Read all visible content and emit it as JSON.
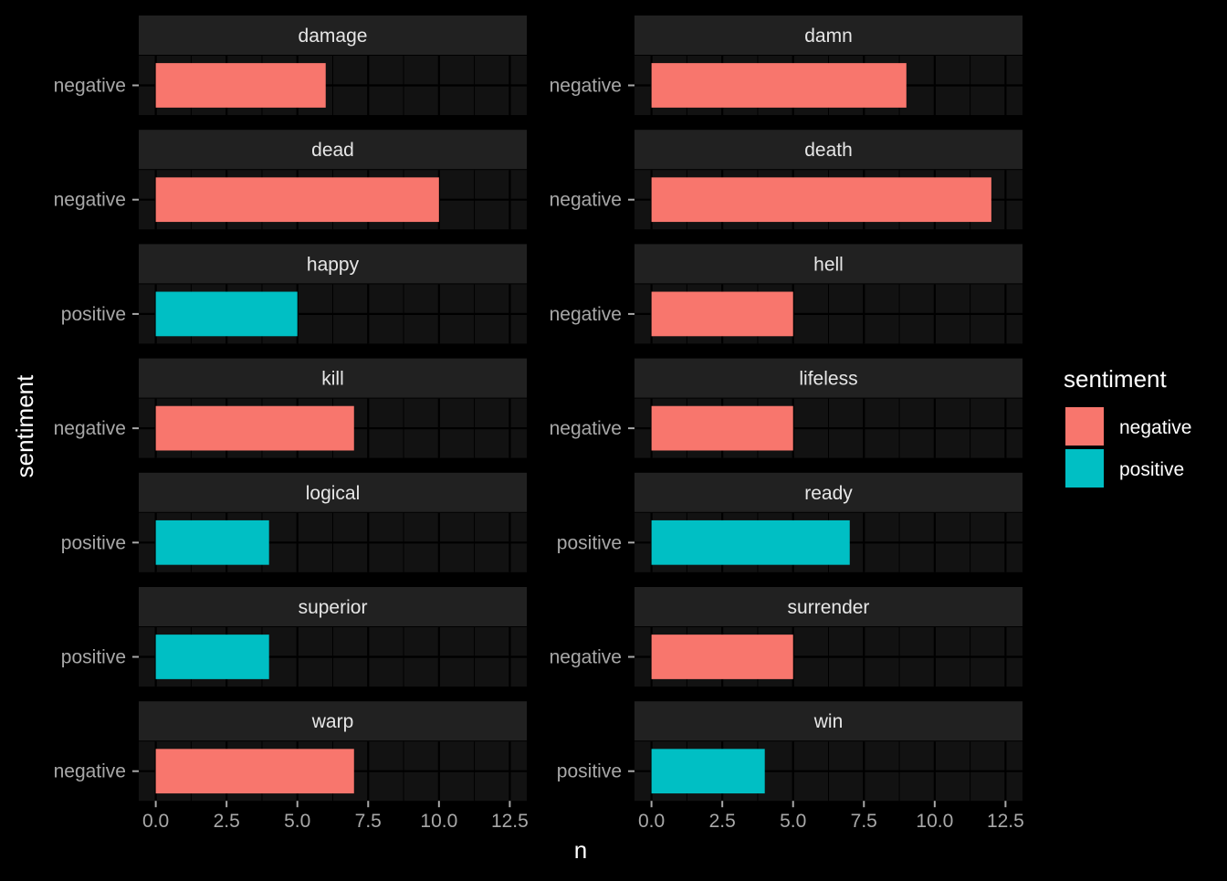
{
  "chart_data": {
    "type": "bar",
    "orientation": "horizontal",
    "facet_layout": "2 columns x 7 rows",
    "xlabel": "n",
    "ylabel": "sentiment",
    "xlim": [
      0,
      12.5
    ],
    "x_ticks": [
      "0.0",
      "2.5",
      "5.0",
      "7.5",
      "10.0",
      "12.5"
    ],
    "grid": true,
    "theme": "dark",
    "legend": {
      "title": "sentiment",
      "position": "right",
      "entries": [
        {
          "label": "negative",
          "color": "#F8766D"
        },
        {
          "label": "positive",
          "color": "#00BFC4"
        }
      ]
    },
    "facets": [
      {
        "word": "damage",
        "sentiment": "negative",
        "n": 6
      },
      {
        "word": "damn",
        "sentiment": "negative",
        "n": 9
      },
      {
        "word": "dead",
        "sentiment": "negative",
        "n": 10
      },
      {
        "word": "death",
        "sentiment": "negative",
        "n": 12
      },
      {
        "word": "happy",
        "sentiment": "positive",
        "n": 5
      },
      {
        "word": "hell",
        "sentiment": "negative",
        "n": 5
      },
      {
        "word": "kill",
        "sentiment": "negative",
        "n": 7
      },
      {
        "word": "lifeless",
        "sentiment": "negative",
        "n": 5
      },
      {
        "word": "logical",
        "sentiment": "positive",
        "n": 4
      },
      {
        "word": "ready",
        "sentiment": "positive",
        "n": 7
      },
      {
        "word": "superior",
        "sentiment": "positive",
        "n": 4
      },
      {
        "word": "surrender",
        "sentiment": "negative",
        "n": 5
      },
      {
        "word": "warp",
        "sentiment": "negative",
        "n": 7
      },
      {
        "word": "win",
        "sentiment": "positive",
        "n": 4
      }
    ]
  }
}
